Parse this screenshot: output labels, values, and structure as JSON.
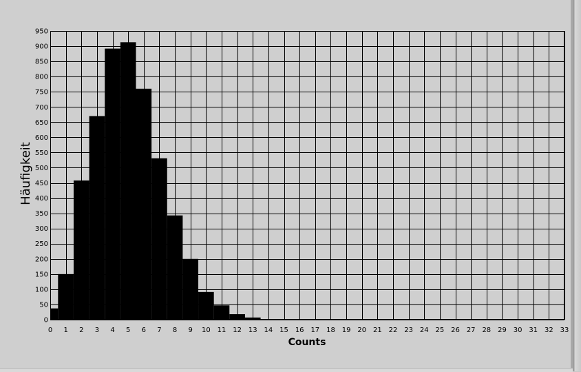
{
  "chart_data": {
    "type": "bar",
    "title": "",
    "xlabel": "Counts",
    "ylabel": "Häufigkeit",
    "xlim": [
      0,
      33
    ],
    "ylim": [
      0,
      950
    ],
    "x_ticks": [
      0,
      1,
      2,
      3,
      4,
      5,
      6,
      7,
      8,
      9,
      10,
      11,
      12,
      13,
      14,
      15,
      16,
      17,
      18,
      19,
      20,
      21,
      22,
      23,
      24,
      25,
      26,
      27,
      28,
      29,
      30,
      31,
      32,
      33
    ],
    "y_ticks": [
      0,
      50,
      100,
      150,
      200,
      250,
      300,
      350,
      400,
      450,
      500,
      550,
      600,
      650,
      700,
      750,
      800,
      850,
      900,
      950
    ],
    "grid": true,
    "bar_color": "#000000",
    "plot_background": "#cfcfcf",
    "grid_color": "#000000",
    "bins": [
      {
        "x0": 0.0,
        "x1": 0.5,
        "value": 37
      },
      {
        "x0": 0.5,
        "x1": 1.5,
        "value": 150
      },
      {
        "x0": 1.5,
        "x1": 2.5,
        "value": 458
      },
      {
        "x0": 2.5,
        "x1": 3.5,
        "value": 670
      },
      {
        "x0": 3.5,
        "x1": 4.5,
        "value": 892
      },
      {
        "x0": 4.5,
        "x1": 5.5,
        "value": 913
      },
      {
        "x0": 5.5,
        "x1": 6.5,
        "value": 760
      },
      {
        "x0": 6.5,
        "x1": 7.5,
        "value": 531
      },
      {
        "x0": 7.5,
        "x1": 8.5,
        "value": 343
      },
      {
        "x0": 8.5,
        "x1": 9.5,
        "value": 200
      },
      {
        "x0": 9.5,
        "x1": 10.5,
        "value": 91
      },
      {
        "x0": 10.5,
        "x1": 11.5,
        "value": 47
      },
      {
        "x0": 11.5,
        "x1": 12.5,
        "value": 18
      },
      {
        "x0": 12.5,
        "x1": 13.5,
        "value": 7
      }
    ]
  }
}
